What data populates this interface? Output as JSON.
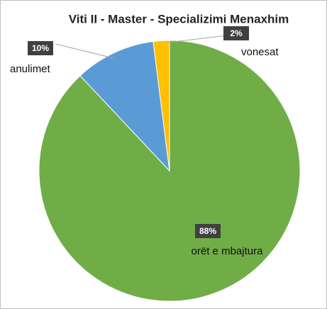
{
  "chart_data": {
    "type": "pie",
    "title": "Viti II - Master - Specializimi Menaxhim",
    "categories": [
      "orët e mbajtura",
      "anulimet",
      "vonesat"
    ],
    "values": [
      88,
      10,
      2
    ],
    "value_labels": [
      "88%",
      "10%",
      "2%"
    ],
    "colors": [
      "#70ad47",
      "#5b9bd5",
      "#ffc000"
    ]
  }
}
